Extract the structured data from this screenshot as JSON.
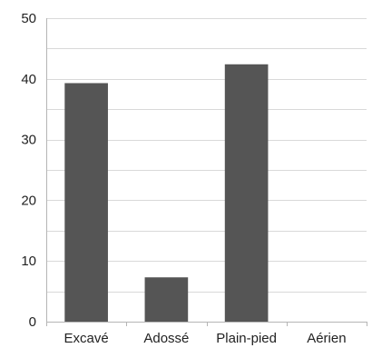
{
  "chart_data": {
    "type": "bar",
    "categories": [
      "Excavé",
      "Adossé",
      "Plain-pied",
      "Aérien"
    ],
    "values": [
      39.3,
      7.3,
      42.4,
      0
    ],
    "ylim": [
      0,
      50
    ],
    "yticks": [
      0,
      10,
      20,
      30,
      40,
      50
    ],
    "grid": true,
    "legend": "none",
    "colors": {
      "bar": "#555555",
      "grid": "#d9d9d9",
      "axis": "#b5b5b5",
      "text": "#222222"
    }
  }
}
